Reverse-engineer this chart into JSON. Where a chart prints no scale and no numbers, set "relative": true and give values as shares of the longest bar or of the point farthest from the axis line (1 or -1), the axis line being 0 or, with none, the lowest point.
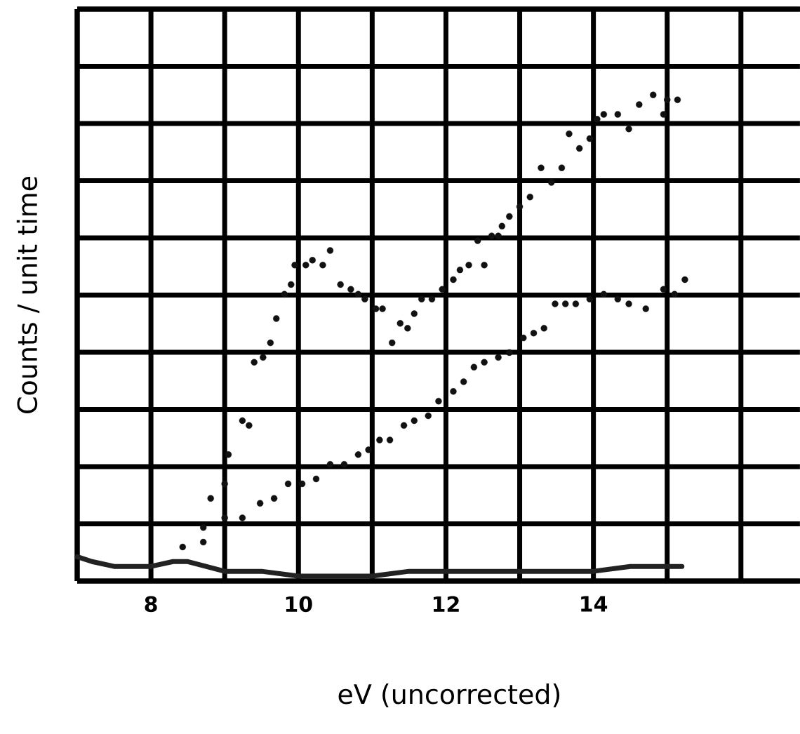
{
  "chart_data": {
    "type": "scatter",
    "xlabel": "eV (uncorrected)",
    "ylabel": "Counts / unit time",
    "relative": true,
    "grid": true,
    "xlim": [
      7,
      16.8
    ],
    "xticks": [
      {
        "value": 7,
        "label": null
      },
      8,
      {
        "value": 9,
        "label": null
      },
      10,
      {
        "value": 11,
        "label": null
      },
      12,
      {
        "value": 13,
        "label": null
      },
      14,
      {
        "value": 15,
        "label": null
      },
      {
        "value": 16,
        "label": null
      }
    ],
    "series": [
      {
        "type": "scatter",
        "marker": "circle",
        "color": "#111111",
        "x": [
          8.71,
          8.81,
          9.0,
          9.05,
          9.24,
          9.33,
          9.4,
          9.52,
          9.62,
          9.7,
          9.81,
          9.9,
          9.95,
          10.1,
          10.19,
          10.33,
          10.43,
          10.57,
          10.71,
          10.81,
          10.9,
          11.05,
          11.14,
          11.27,
          11.38,
          11.48,
          11.57,
          11.67,
          11.81,
          11.95,
          12.1,
          12.19,
          12.31,
          12.43,
          12.52,
          12.62,
          12.71,
          12.76,
          12.86,
          13.0,
          13.14,
          13.29,
          13.43,
          13.57,
          13.67,
          13.81,
          13.95,
          14.05,
          14.14,
          14.33,
          14.48,
          14.62,
          14.81,
          14.95,
          15.0,
          15.14
        ],
        "values": [
          0.08,
          0.17,
          0.2,
          0.26,
          0.33,
          0.32,
          0.45,
          0.46,
          0.49,
          0.54,
          0.59,
          0.61,
          0.65,
          0.65,
          0.66,
          0.65,
          0.68,
          0.61,
          0.6,
          0.59,
          0.58,
          0.56,
          0.56,
          0.49,
          0.53,
          0.52,
          0.55,
          0.58,
          0.58,
          0.6,
          0.62,
          0.64,
          0.65,
          0.7,
          0.65,
          0.71,
          0.71,
          0.73,
          0.75,
          0.77,
          0.79,
          0.85,
          0.82,
          0.85,
          0.92,
          0.89,
          0.91,
          0.95,
          0.96,
          0.96,
          0.93,
          0.98,
          1,
          0.96,
          0.99,
          0.99
        ]
      },
      {
        "type": "scatter",
        "marker": "circle",
        "color": "#111111",
        "x": [
          8.43,
          8.71,
          9.0,
          9.24,
          9.48,
          9.67,
          9.86,
          10.05,
          10.24,
          10.43,
          10.62,
          10.81,
          10.95,
          11.1,
          11.24,
          11.43,
          11.57,
          11.76,
          11.9,
          12.1,
          12.24,
          12.38,
          12.52,
          12.71,
          12.86,
          13.05,
          13.19,
          13.33,
          13.48,
          13.62,
          13.76,
          13.95,
          14.14,
          14.33,
          14.48,
          14.71,
          14.95,
          15.1,
          15.24
        ],
        "values": [
          0.07,
          0.11,
          0.13,
          0.13,
          0.16,
          0.17,
          0.2,
          0.2,
          0.21,
          0.24,
          0.24,
          0.26,
          0.27,
          0.29,
          0.29,
          0.32,
          0.33,
          0.34,
          0.37,
          0.39,
          0.41,
          0.44,
          0.45,
          0.46,
          0.47,
          0.5,
          0.51,
          0.52,
          0.57,
          0.57,
          0.57,
          0.58,
          0.59,
          0.58,
          0.57,
          0.56,
          0.6,
          0.59,
          0.62
        ]
      },
      {
        "type": "line",
        "marker": "none",
        "color": "#222222",
        "x": [
          7.0,
          7.2,
          7.5,
          8.0,
          8.3,
          8.5,
          9.0,
          9.5,
          10.0,
          10.5,
          11.0,
          11.5,
          12.0,
          12.5,
          13.0,
          13.5,
          14.0,
          14.5,
          15.0,
          15.2
        ],
        "values": [
          0.05,
          0.04,
          0.03,
          0.03,
          0.04,
          0.04,
          0.02,
          0.02,
          0.01,
          0.01,
          0.01,
          0.02,
          0.02,
          0.02,
          0.02,
          0.02,
          0.02,
          0.03,
          0.03,
          0.03
        ]
      }
    ]
  }
}
